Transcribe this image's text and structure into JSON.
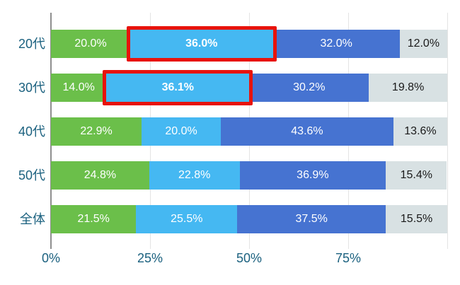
{
  "chart_data": {
    "type": "bar",
    "orientation": "horizontal",
    "stacked": true,
    "title": "",
    "categories": [
      "20代",
      "30代",
      "40代",
      "50代",
      "全体"
    ],
    "series": [
      {
        "name": "segment-green",
        "color": "#6bbf4a",
        "label_color": "#ffffff",
        "values": [
          20.0,
          14.0,
          22.9,
          24.8,
          21.5
        ]
      },
      {
        "name": "segment-lightblue",
        "color": "#45b8f2",
        "label_color": "#ffffff",
        "values": [
          36.0,
          36.1,
          20.0,
          22.8,
          25.5
        ]
      },
      {
        "name": "segment-blue",
        "color": "#4673d1",
        "label_color": "#ffffff",
        "values": [
          32.0,
          30.2,
          43.6,
          36.9,
          37.5
        ]
      },
      {
        "name": "segment-gray",
        "color": "#d8e1e3",
        "label_color": "#1a1a1a",
        "values": [
          12.0,
          19.8,
          13.6,
          15.4,
          15.5
        ]
      }
    ],
    "labels": [
      [
        "20.0%",
        "36.0%",
        "32.0%",
        "12.0%"
      ],
      [
        "14.0%",
        "36.1%",
        "30.2%",
        "19.8%"
      ],
      [
        "22.9%",
        "20.0%",
        "43.6%",
        "13.6%"
      ],
      [
        "24.8%",
        "22.8%",
        "36.9%",
        "15.4%"
      ],
      [
        "21.5%",
        "25.5%",
        "37.5%",
        "15.5%"
      ]
    ],
    "highlights": [
      {
        "row": 0,
        "series": 1
      },
      {
        "row": 1,
        "series": 1
      }
    ],
    "highlight_color": "#e8130c",
    "x_ticks": [
      "0%",
      "25%",
      "50%",
      "75%"
    ],
    "x_tick_positions": [
      0,
      25,
      50,
      75
    ],
    "gridline_positions": [
      0,
      25,
      50,
      75,
      100
    ],
    "xlim": [
      0,
      100
    ],
    "grid": true,
    "legend": false,
    "tick_color": "#1b617f",
    "grid_color": "#e4e4e4",
    "axis_line_color": "#8f8f8f",
    "background_color": "#ffffff"
  }
}
